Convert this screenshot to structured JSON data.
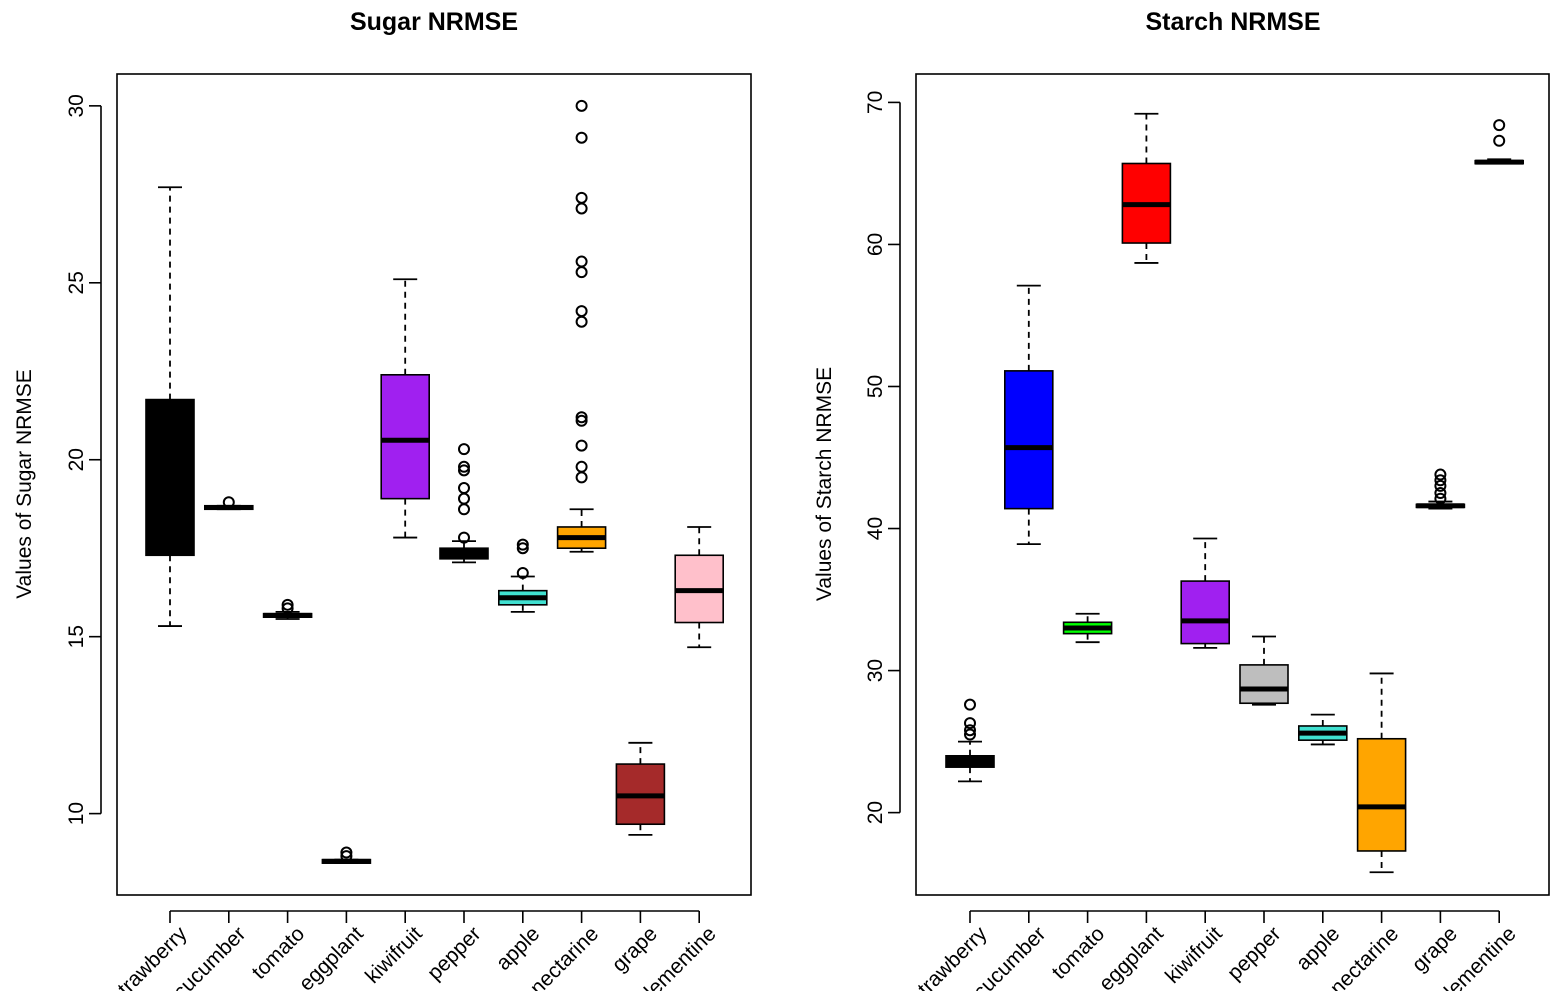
{
  "chart_data": [
    {
      "type": "boxplot",
      "title": "Sugar NRMSE",
      "xlabel": "",
      "ylabel": "Values of Sugar NRMSE",
      "ylim": [
        7.7,
        30.9
      ],
      "yticks": [
        "10",
        "15",
        "20",
        "25",
        "30"
      ],
      "categories": [
        "strawberry",
        "cucumber",
        "tomato",
        "eggplant",
        "kiwifruit",
        "pepper",
        "apple",
        "nectarine",
        "grape",
        "clementine"
      ],
      "colors": [
        "#000000",
        "#000000",
        "#000000",
        "#000000",
        "#a020f0",
        "#000000",
        "#40e0d0",
        "#ffa500",
        "#a52a2a",
        "#ffc0cb"
      ],
      "boxes": [
        {
          "whisker_low": 15.3,
          "q1": 17.3,
          "median": 19.5,
          "q3": 21.7,
          "whisker_high": 27.7,
          "outliers": []
        },
        {
          "whisker_low": 18.6,
          "q1": 18.6,
          "median": 18.65,
          "q3": 18.7,
          "whisker_high": 18.7,
          "outliers": [
            18.8
          ]
        },
        {
          "whisker_low": 15.5,
          "q1": 15.55,
          "median": 15.6,
          "q3": 15.65,
          "whisker_high": 15.7,
          "outliers": [
            15.8,
            15.9
          ]
        },
        {
          "whisker_low": 8.6,
          "q1": 8.6,
          "median": 8.65,
          "q3": 8.7,
          "whisker_high": 8.7,
          "outliers": [
            8.8,
            8.9
          ]
        },
        {
          "whisker_low": 17.8,
          "q1": 18.9,
          "median": 20.55,
          "q3": 22.4,
          "whisker_high": 25.1,
          "outliers": []
        },
        {
          "whisker_low": 17.1,
          "q1": 17.2,
          "median": 17.3,
          "q3": 17.5,
          "whisker_high": 17.7,
          "outliers": [
            17.8,
            18.6,
            18.9,
            19.2,
            19.7,
            19.8,
            20.3
          ]
        },
        {
          "whisker_low": 15.7,
          "q1": 15.9,
          "median": 16.1,
          "q3": 16.3,
          "whisker_high": 16.7,
          "outliers": [
            16.8,
            17.5,
            17.6
          ]
        },
        {
          "whisker_low": 17.4,
          "q1": 17.5,
          "median": 17.8,
          "q3": 18.1,
          "whisker_high": 18.6,
          "outliers": [
            19.5,
            19.8,
            20.4,
            21.1,
            21.2,
            23.9,
            24.2,
            25.3,
            25.6,
            27.1,
            27.4,
            29.1,
            30.0
          ]
        },
        {
          "whisker_low": 9.4,
          "q1": 9.7,
          "median": 10.5,
          "q3": 11.4,
          "whisker_high": 12.0,
          "outliers": []
        },
        {
          "whisker_low": 14.7,
          "q1": 15.4,
          "median": 16.3,
          "q3": 17.3,
          "whisker_high": 18.1,
          "outliers": []
        }
      ]
    },
    {
      "type": "boxplot",
      "title": "Starch NRMSE",
      "xlabel": "",
      "ylabel": "Values of Starch NRMSE",
      "ylim": [
        14.2,
        72.0
      ],
      "yticks": [
        "20",
        "30",
        "40",
        "50",
        "60",
        "70"
      ],
      "categories": [
        "strawberry",
        "cucumber",
        "tomato",
        "eggplant",
        "kiwifruit",
        "pepper",
        "apple",
        "nectarine",
        "grape",
        "clementine"
      ],
      "colors": [
        "#000000",
        "#0000ff",
        "#00ff00",
        "#ff0000",
        "#a020f0",
        "#bebebe",
        "#40e0d0",
        "#ffa500",
        "#000000",
        "#000000"
      ],
      "boxes": [
        {
          "whisker_low": 22.2,
          "q1": 23.2,
          "median": 23.6,
          "q3": 24.0,
          "whisker_high": 25.0,
          "outliers": [
            25.5,
            25.8,
            26.3,
            27.6
          ]
        },
        {
          "whisker_low": 38.9,
          "q1": 41.4,
          "median": 45.7,
          "q3": 51.1,
          "whisker_high": 57.1,
          "outliers": []
        },
        {
          "whisker_low": 32.0,
          "q1": 32.6,
          "median": 33.0,
          "q3": 33.4,
          "whisker_high": 34.0,
          "outliers": []
        },
        {
          "whisker_low": 58.7,
          "q1": 60.1,
          "median": 62.8,
          "q3": 65.7,
          "whisker_high": 69.2,
          "outliers": []
        },
        {
          "whisker_low": 31.6,
          "q1": 31.9,
          "median": 33.5,
          "q3": 36.3,
          "whisker_high": 39.3,
          "outliers": []
        },
        {
          "whisker_low": 27.6,
          "q1": 27.7,
          "median": 28.7,
          "q3": 30.4,
          "whisker_high": 32.4,
          "outliers": []
        },
        {
          "whisker_low": 24.8,
          "q1": 25.1,
          "median": 25.6,
          "q3": 26.1,
          "whisker_high": 26.9,
          "outliers": []
        },
        {
          "whisker_low": 15.8,
          "q1": 17.3,
          "median": 20.4,
          "q3": 25.2,
          "whisker_high": 29.8,
          "outliers": []
        },
        {
          "whisker_low": 41.4,
          "q1": 41.5,
          "median": 41.6,
          "q3": 41.7,
          "whisker_high": 41.9,
          "outliers": [
            42.1,
            42.5,
            43.0,
            43.4,
            43.8
          ]
        },
        {
          "whisker_low": 65.7,
          "q1": 65.7,
          "median": 65.8,
          "q3": 65.9,
          "whisker_high": 66.0,
          "outliers": [
            67.3,
            68.4
          ]
        }
      ]
    }
  ]
}
